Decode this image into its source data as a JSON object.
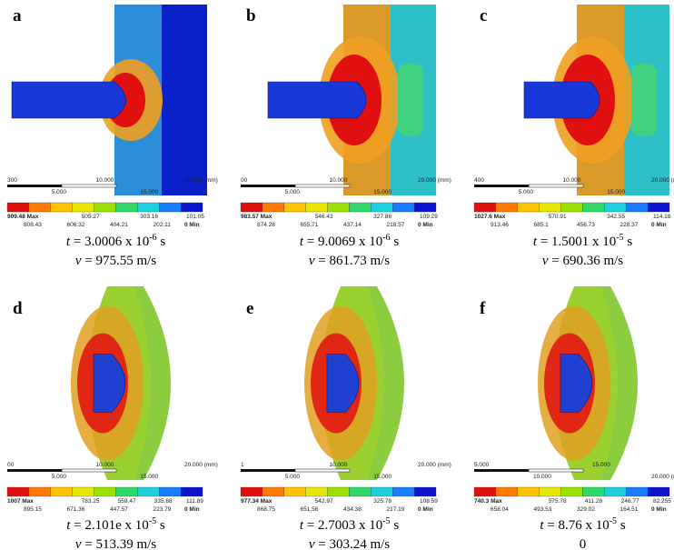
{
  "panels": [
    {
      "label": "a",
      "scale": [
        "300",
        "5.000",
        "10.000",
        "15.000",
        "20.000 (mm)"
      ],
      "legend_top": [
        "909.48 Max",
        "505.27",
        "303.16",
        "101.05"
      ],
      "legend_bottom": [
        "808.43",
        "606.32",
        "404.21",
        "202.11",
        "0 Min"
      ],
      "t_label": "t",
      "t_text": " = 3.0006 x 10",
      "t_exp": "-6",
      "t_unit": " s",
      "v_label": "v",
      "v_text": " = 975.55 m/s"
    },
    {
      "label": "b",
      "scale": [
        "00",
        "5.000",
        "10.000",
        "15.000",
        "20.000 (mm)"
      ],
      "legend_top": [
        "983.57 Max",
        "546.43",
        "327.86",
        "109.29"
      ],
      "legend_bottom": [
        "874.28",
        "655.71",
        "437.14",
        "218.57",
        "0 Min"
      ],
      "t_label": "t",
      "t_text": " = 9.0069 x 10",
      "t_exp": "-6",
      "t_unit": " s",
      "v_label": "v",
      "v_text": " = 861.73 m/s"
    },
    {
      "label": "c",
      "scale": [
        "400",
        "5.000",
        "10.000",
        "15.000",
        "20.000 (mm)"
      ],
      "legend_top": [
        "1027.6 Max",
        "570.91",
        "342.55",
        "114.18"
      ],
      "legend_bottom": [
        "913.46",
        "685.1",
        "456.73",
        "228.37",
        "0 Min"
      ],
      "t_label": "t",
      "t_text": " = 1.5001 x 10",
      "t_exp": "-5",
      "t_unit": " s",
      "v_label": "v",
      "v_text": " = 690.36 m/s"
    },
    {
      "label": "d",
      "scale": [
        "00",
        "5.000",
        "10.000",
        "15.000",
        "20.000 (mm)"
      ],
      "legend_top": [
        "1007 Max",
        "783.25",
        "559.47",
        "335.68",
        "111.89"
      ],
      "legend_bottom": [
        "895.15",
        "671.36",
        "447.57",
        "223.79",
        "0 Min"
      ],
      "t_label": "t",
      "t_text": " = 2.101e x 10",
      "t_exp": "-5",
      "t_unit": " s",
      "v_label": "v",
      "v_text": " = 513.39 m/s"
    },
    {
      "label": "e",
      "scale": [
        "1",
        "5.000",
        "10.000",
        "15.000",
        "20.000 (mm)"
      ],
      "legend_top": [
        "977.34 Max",
        "542.97",
        "325.78",
        "108.59"
      ],
      "legend_bottom": [
        "868.75",
        "651.56",
        "434.38",
        "217.19",
        "0 Min"
      ],
      "t_label": "t",
      "t_text": " = 2.7003 x 10",
      "t_exp": "-5",
      "t_unit": " s",
      "v_label": "v",
      "v_text": " = 303.24 m/s"
    },
    {
      "label": "f",
      "scale": [
        "5.000",
        "10.000",
        "15.000",
        "20.000 (mm)"
      ],
      "legend_top": [
        "740.3 Max",
        "575.78",
        "411.28",
        "246.77",
        "82.255"
      ],
      "legend_bottom": [
        "658.04",
        "493.53",
        "329.02",
        "164.51",
        "0 Min"
      ],
      "t_label": "t",
      "t_text": " = 8.76 x 10",
      "t_exp": "-5",
      "t_unit": " s",
      "v_label": null,
      "v_text": "0"
    }
  ]
}
